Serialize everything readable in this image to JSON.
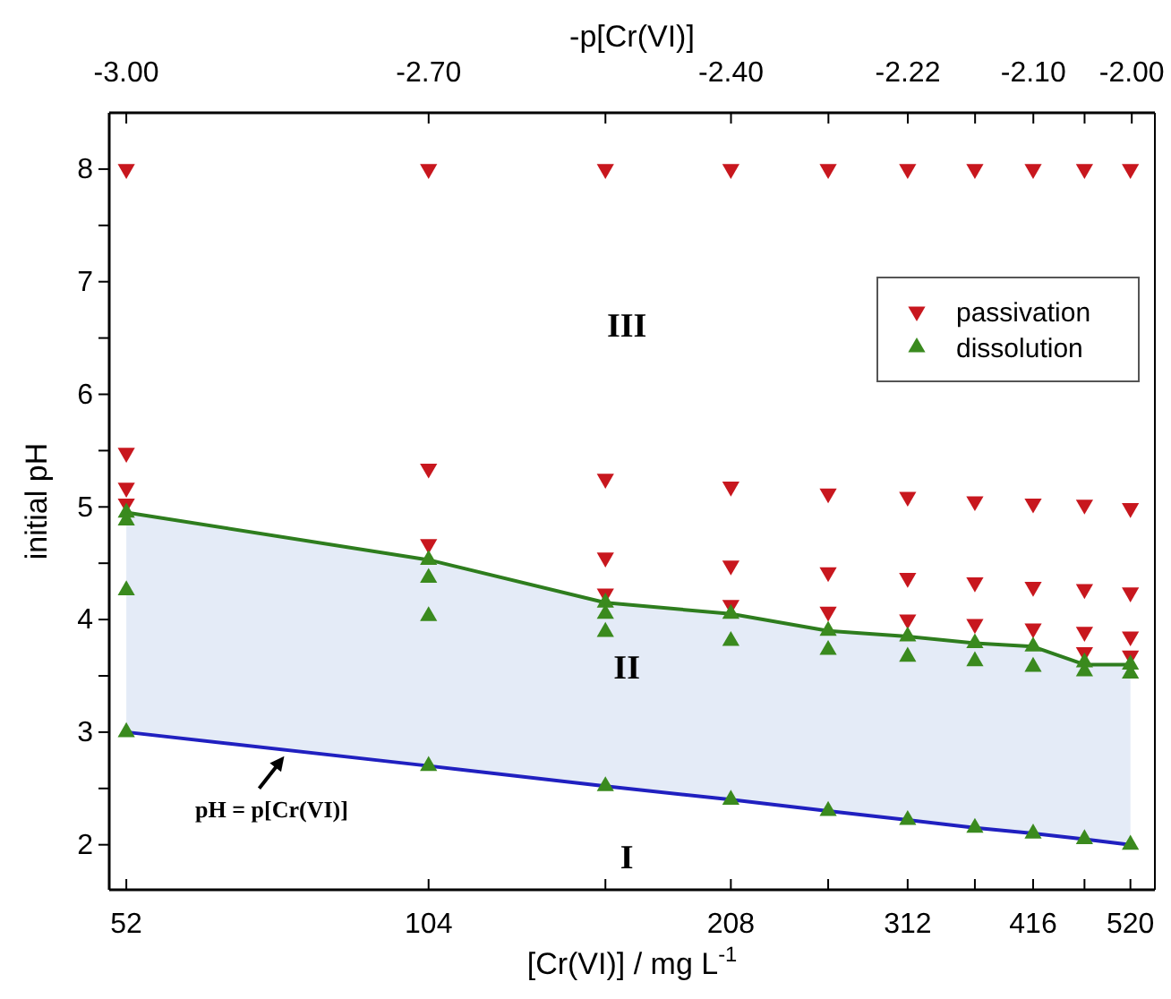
{
  "chart_data": {
    "type": "scatter",
    "xlabel": "[Cr(VI)] / mg L$^{-1}$",
    "x2label": "-p[Cr(VI)]",
    "ylabel": "initial pH",
    "log": "x",
    "xlim": [
      50,
      550
    ],
    "xticks": [
      52,
      104,
      {
        "value": 156,
        "label": null
      },
      208,
      {
        "value": 260,
        "label": null
      },
      312,
      {
        "value": 364,
        "label": null
      },
      416,
      {
        "value": 468,
        "label": null
      },
      520
    ],
    "x2lim": [
      -3.017,
      -1.976
    ],
    "x2ticks": [
      {
        "value": -3.0,
        "label": "-3.00"
      },
      {
        "value": -2.699,
        "label": "-2.70"
      },
      {
        "value": -2.523,
        "label": null
      },
      {
        "value": -2.398,
        "label": "-2.40"
      },
      {
        "value": -2.301,
        "label": null
      },
      {
        "value": -2.222,
        "label": "-2.22"
      },
      {
        "value": -2.155,
        "label": null
      },
      {
        "value": -2.097,
        "label": "-2.10"
      },
      {
        "value": -2.046,
        "label": null
      },
      {
        "value": -1.999,
        "label": "-2.00"
      }
    ],
    "ylim": [
      1.6,
      8.5
    ],
    "yticks": [
      2,
      {
        "value": 2.5,
        "label": null
      },
      3,
      {
        "value": 3.5,
        "label": null
      },
      4,
      {
        "value": 4.5,
        "label": null
      },
      5,
      {
        "value": 5.5,
        "label": null
      },
      6,
      {
        "value": 6.5,
        "label": null
      },
      7,
      {
        "value": 7.5,
        "label": null
      },
      8
    ],
    "grid": false,
    "legend": "top right",
    "series": [
      {
        "type": "line",
        "color": "#2e7d1e",
        "marker": "none",
        "x": [
          52,
          104,
          156,
          208,
          260,
          312,
          364,
          416,
          468,
          520
        ],
        "values": [
          4.95,
          4.53,
          4.15,
          4.05,
          3.9,
          3.85,
          3.79,
          3.76,
          3.6,
          3.6
        ],
        "lower": [
          3.0,
          2.7,
          2.52,
          2.4,
          2.3,
          2.22,
          2.15,
          2.1,
          2.05,
          2.0
        ],
        "upper": [
          4.95,
          4.53,
          4.15,
          4.05,
          3.9,
          3.85,
          3.79,
          3.76,
          3.6,
          3.6
        ]
      },
      {
        "type": "line",
        "color": "#2020c0",
        "marker": "none",
        "x": [
          52,
          104,
          156,
          208,
          260,
          312,
          364,
          416,
          468,
          520
        ],
        "values": [
          3.0,
          2.7,
          2.52,
          2.4,
          2.3,
          2.22,
          2.15,
          2.1,
          2.05,
          2.0
        ]
      },
      {
        "name": "passivation",
        "color": "#c8171e",
        "marker": "triangle-down",
        "x": [
          52,
          52,
          52,
          52,
          104,
          104,
          104,
          156,
          156,
          156,
          156,
          208,
          208,
          208,
          208,
          260,
          260,
          260,
          260,
          312,
          312,
          312,
          312,
          364,
          364,
          364,
          364,
          416,
          416,
          416,
          416,
          468,
          468,
          468,
          468,
          468,
          520,
          520,
          520,
          520,
          520
        ],
        "values": [
          8,
          5.48,
          5.17,
          5.03,
          8,
          5.34,
          4.67,
          8,
          5.25,
          4.55,
          4.23,
          8,
          5.18,
          4.48,
          4.13,
          8,
          5.12,
          4.42,
          4.07,
          8,
          5.09,
          4.37,
          4.0,
          8,
          5.05,
          4.33,
          3.96,
          8,
          5.03,
          4.29,
          3.92,
          8,
          5.02,
          4.27,
          3.89,
          3.71,
          8,
          4.99,
          4.24,
          3.85,
          3.68
        ]
      },
      {
        "name": "dissolution",
        "color": "#3a8a1e",
        "marker": "triangle",
        "x": [
          52,
          52,
          52,
          52,
          104,
          104,
          104,
          104,
          156,
          156,
          156,
          156,
          208,
          208,
          208,
          260,
          260,
          260,
          312,
          312,
          312,
          364,
          364,
          364,
          416,
          416,
          416,
          468,
          468,
          468,
          520,
          520,
          520
        ],
        "values": [
          4.95,
          4.88,
          4.26,
          3.0,
          4.53,
          4.37,
          4.03,
          2.7,
          4.15,
          4.05,
          3.89,
          2.52,
          4.05,
          3.81,
          2.4,
          3.9,
          3.73,
          2.3,
          3.85,
          3.67,
          2.22,
          3.79,
          3.63,
          2.15,
          3.76,
          3.58,
          2.1,
          3.62,
          3.54,
          2.05,
          3.6,
          3.52,
          2.0
        ]
      }
    ],
    "annotations": [
      "III",
      "II",
      "I",
      {
        "text": "pH = p[Cr(VI)]",
        "x": 75,
        "y": 2.85
      }
    ]
  }
}
